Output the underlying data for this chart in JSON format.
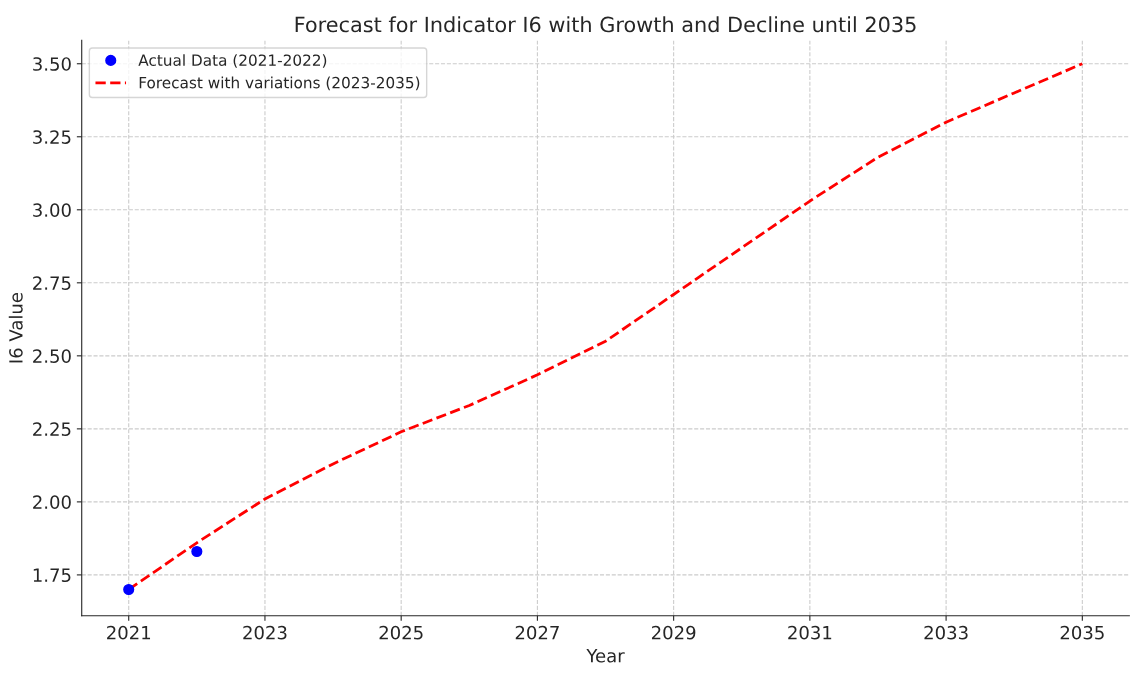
{
  "chart_data": {
    "type": "line",
    "title": "Forecast for Indicator I6 with Growth and Decline until 2035",
    "xlabel": "Year",
    "ylabel": "I6 Value",
    "series": [
      {
        "name": "Actual Data (2021-2022)",
        "type": "scatter",
        "color": "#0000ff",
        "marker": "circle",
        "x": [
          2021,
          2022
        ],
        "values": [
          1.7,
          1.83
        ]
      },
      {
        "name": "Forecast with variations (2023-2035)",
        "color": "#ff0000",
        "line_style": "dashed",
        "x": [
          2021,
          2022,
          2023,
          2024,
          2025,
          2026,
          2027,
          2028,
          2029,
          2030,
          2031,
          2032,
          2033,
          2034,
          2035
        ],
        "values": [
          1.7,
          1.86,
          2.01,
          2.13,
          2.24,
          2.33,
          2.435,
          2.55,
          2.71,
          2.87,
          3.03,
          3.18,
          3.3,
          3.4,
          3.5
        ]
      }
    ],
    "xlim": [
      2020.31,
      2035.69
    ],
    "xticks": [
      2021,
      2023,
      2025,
      2027,
      2029,
      2031,
      2033,
      2035
    ],
    "ylim": [
      1.61,
      3.58
    ],
    "yticks": [
      {
        "value": 1.75,
        "label": "1.75"
      },
      {
        "value": 2.0,
        "label": "2.00"
      },
      {
        "value": 2.25,
        "label": "2.25"
      },
      {
        "value": 2.5,
        "label": "2.50"
      },
      {
        "value": 2.75,
        "label": "2.75"
      },
      {
        "value": 3.0,
        "label": "3.00"
      },
      {
        "value": 3.25,
        "label": "3.25"
      },
      {
        "value": 3.5,
        "label": "3.50"
      }
    ],
    "grid": true,
    "legend": "top left"
  }
}
